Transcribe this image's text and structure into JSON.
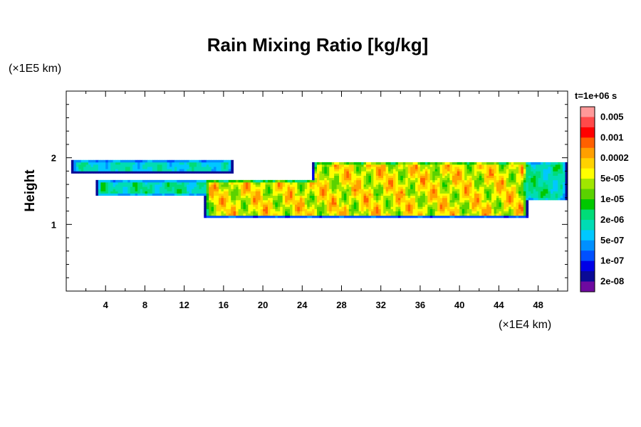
{
  "chart_data": {
    "type": "heatmap",
    "title": "Rain Mixing Ratio [kg/kg]",
    "ylabel": "Height",
    "xlabel": "",
    "x_scale_label": "(×1E4 km)",
    "y_scale_label": "(×1E5 km)",
    "time_label": "t=1e+06 s",
    "x_ticks": [
      4,
      8,
      12,
      16,
      20,
      24,
      28,
      32,
      36,
      40,
      44,
      48
    ],
    "y_ticks": [
      1,
      2
    ],
    "xlim": [
      0,
      51
    ],
    "ylim": [
      0,
      3
    ],
    "colorbar": {
      "labels": [
        "0.005",
        "0.001",
        "0.0002",
        "5e-05",
        "1e-05",
        "2e-06",
        "5e-07",
        "1e-07",
        "2e-08"
      ],
      "colors": [
        "#ff9999",
        "#ff4a4a",
        "#ff0000",
        "#ff6000",
        "#ff9f00",
        "#ffd200",
        "#ffff00",
        "#a0e600",
        "#5ad200",
        "#00c800",
        "#00dc78",
        "#00dcb4",
        "#00c8ff",
        "#0090ff",
        "#0050ff",
        "#0000e6",
        "#0a0a96",
        "#6e0aa0"
      ]
    },
    "cloud_layers": [
      {
        "name": "upper-left band",
        "x": [
          0.5,
          17
        ],
        "y": [
          1.77,
          1.98
        ],
        "peak": 7
      },
      {
        "name": "left middle",
        "x": [
          3,
          16
        ],
        "y": [
          1.42,
          1.68
        ],
        "peak": 8
      },
      {
        "name": "middle block",
        "x": [
          14,
          31
        ],
        "y": [
          1.1,
          1.68
        ],
        "peak": 14
      },
      {
        "name": "right block",
        "x": [
          25,
          47
        ],
        "y": [
          1.1,
          1.95
        ],
        "peak": 14
      },
      {
        "name": "far right",
        "x": [
          44,
          51
        ],
        "y": [
          1.35,
          1.95
        ],
        "peak": 8
      }
    ]
  }
}
